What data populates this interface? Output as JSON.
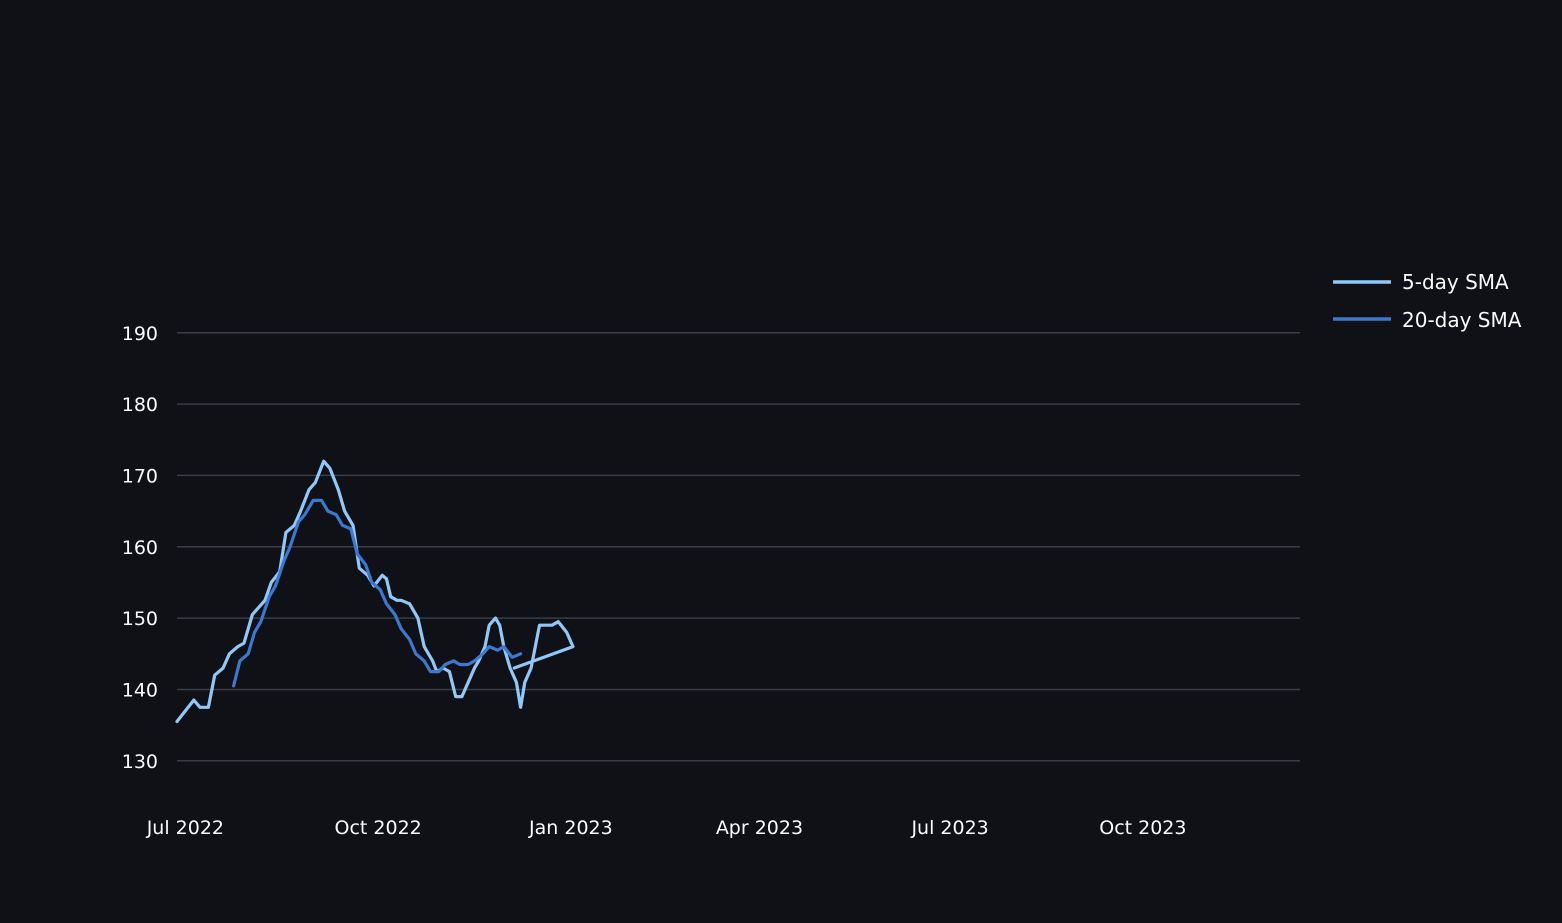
{
  "colors": {
    "background": "#0f1117",
    "grid": "#3a3d46",
    "text": "#fafafa"
  },
  "chart_data": {
    "type": "line",
    "title": "",
    "xlabel": "",
    "ylabel": "",
    "grid": "horizontal",
    "legend_position": "right",
    "x_range": [
      "2022-06-27",
      "2023-12-15"
    ],
    "ylim": [
      122.4,
      200.2
    ],
    "y_ticks": [
      130,
      140,
      150,
      160,
      170,
      180,
      190
    ],
    "x_ticks": [
      {
        "date": "2022-07-01",
        "label": "Jul 2022"
      },
      {
        "date": "2022-10-01",
        "label": "Oct 2022"
      },
      {
        "date": "2023-01-01",
        "label": "Jan 2023"
      },
      {
        "date": "2023-04-01",
        "label": "Apr 2023"
      },
      {
        "date": "2023-07-01",
        "label": "Jul 2023"
      },
      {
        "date": "2023-10-01",
        "label": "Oct 2023"
      }
    ],
    "series": [
      {
        "name": "5-day SMA",
        "color": "#90c8f8",
        "points": [
          [
            "2022-06-27",
            135.5
          ],
          [
            "2022-07-01",
            137
          ],
          [
            "2022-07-05",
            138.5
          ],
          [
            "2022-07-08",
            137.5
          ],
          [
            "2022-07-12",
            137.5
          ],
          [
            "2022-07-15",
            142
          ],
          [
            "2022-07-19",
            143
          ],
          [
            "2022-07-22",
            145
          ],
          [
            "2022-07-26",
            146
          ],
          [
            "2022-07-29",
            146.5
          ],
          [
            "2022-08-02",
            150.5
          ],
          [
            "2022-08-05",
            151.5
          ],
          [
            "2022-08-08",
            152.5
          ],
          [
            "2022-08-11",
            155
          ],
          [
            "2022-08-15",
            156.5
          ],
          [
            "2022-08-18",
            162
          ],
          [
            "2022-08-22",
            163
          ],
          [
            "2022-08-25",
            165
          ],
          [
            "2022-08-29",
            168
          ],
          [
            "2022-09-01",
            169
          ],
          [
            "2022-09-05",
            172
          ],
          [
            "2022-09-08",
            171
          ],
          [
            "2022-09-12",
            168
          ],
          [
            "2022-09-15",
            165
          ],
          [
            "2022-09-19",
            163
          ],
          [
            "2022-09-22",
            157
          ],
          [
            "2022-09-26",
            156
          ],
          [
            "2022-09-29",
            154.5
          ],
          [
            "2022-10-03",
            156
          ],
          [
            "2022-10-05",
            155.5
          ],
          [
            "2022-10-07",
            153
          ],
          [
            "2022-10-10",
            152.5
          ],
          [
            "2022-10-12",
            152.5
          ],
          [
            "2022-10-16",
            152
          ],
          [
            "2022-10-20",
            150
          ],
          [
            "2022-10-23",
            146
          ],
          [
            "2022-10-27",
            144
          ],
          [
            "2022-10-29",
            142.5
          ],
          [
            "2022-11-01",
            143
          ],
          [
            "2022-11-04",
            142.5
          ],
          [
            "2022-11-07",
            139
          ],
          [
            "2022-11-10",
            139
          ],
          [
            "2022-11-13",
            141
          ],
          [
            "2022-11-16",
            143
          ],
          [
            "2022-11-18",
            144
          ],
          [
            "2022-11-21",
            146
          ],
          [
            "2022-11-23",
            149
          ],
          [
            "2022-11-26",
            150
          ],
          [
            "2022-11-28",
            149
          ],
          [
            "2022-11-30",
            146
          ],
          [
            "2022-12-03",
            143
          ],
          [
            "2022-12-06",
            141
          ],
          [
            "2022-12-08",
            137.5
          ],
          [
            "2022-12-10",
            141
          ],
          [
            "2022-12-13",
            143
          ],
          [
            "2022-12-15",
            146
          ],
          [
            "2022-12-17",
            149
          ],
          [
            "2022-12-20",
            149
          ],
          [
            "2022-12-23",
            149
          ],
          [
            "2022-12-26",
            149.5
          ],
          [
            "2022-12-30",
            148
          ],
          [
            "2023-01-02",
            146
          ],
          [
            "2022-12-05",
            143
          ],
          [
            "2022-12-05",
            143
          ]
        ]
      },
      {
        "name": "20-day SMA",
        "color": "#3b78d0",
        "points": [
          [
            "2022-07-24",
            140.5
          ],
          [
            "2022-07-27",
            144
          ],
          [
            "2022-07-31",
            145
          ],
          [
            "2022-08-03",
            148
          ],
          [
            "2022-08-06",
            149.5
          ],
          [
            "2022-08-10",
            153
          ],
          [
            "2022-08-13",
            154.5
          ],
          [
            "2022-08-17",
            158
          ],
          [
            "2022-08-20",
            160
          ],
          [
            "2022-08-24",
            163.5
          ],
          [
            "2022-08-27",
            164.5
          ],
          [
            "2022-08-31",
            166.5
          ],
          [
            "2022-09-04",
            166.5
          ],
          [
            "2022-09-07",
            165
          ],
          [
            "2022-09-11",
            164.5
          ],
          [
            "2022-09-14",
            163
          ],
          [
            "2022-09-18",
            162.5
          ],
          [
            "2022-09-21",
            159
          ],
          [
            "2022-09-25",
            157.5
          ],
          [
            "2022-09-28",
            155
          ],
          [
            "2022-10-02",
            154
          ],
          [
            "2022-10-05",
            152
          ],
          [
            "2022-10-09",
            150.5
          ],
          [
            "2022-10-12",
            148.5
          ],
          [
            "2022-10-16",
            147
          ],
          [
            "2022-10-19",
            145
          ],
          [
            "2022-10-23",
            144
          ],
          [
            "2022-10-26",
            142.5
          ],
          [
            "2022-10-30",
            142.5
          ],
          [
            "2022-11-02",
            143.5
          ],
          [
            "2022-11-06",
            144
          ],
          [
            "2022-11-09",
            143.5
          ],
          [
            "2022-11-13",
            143.5
          ],
          [
            "2022-11-16",
            144
          ],
          [
            "2022-11-20",
            145
          ],
          [
            "2022-11-23",
            146
          ],
          [
            "2022-11-27",
            145.5
          ],
          [
            "2022-11-30",
            146
          ],
          [
            "2022-12-04",
            144.5
          ],
          [
            "2022-12-08",
            145
          ]
        ]
      }
    ]
  },
  "legend": {
    "items": [
      {
        "label": "5-day SMA",
        "color": "#90c8f8"
      },
      {
        "label": "20-day SMA",
        "color": "#3b78d0"
      }
    ]
  }
}
